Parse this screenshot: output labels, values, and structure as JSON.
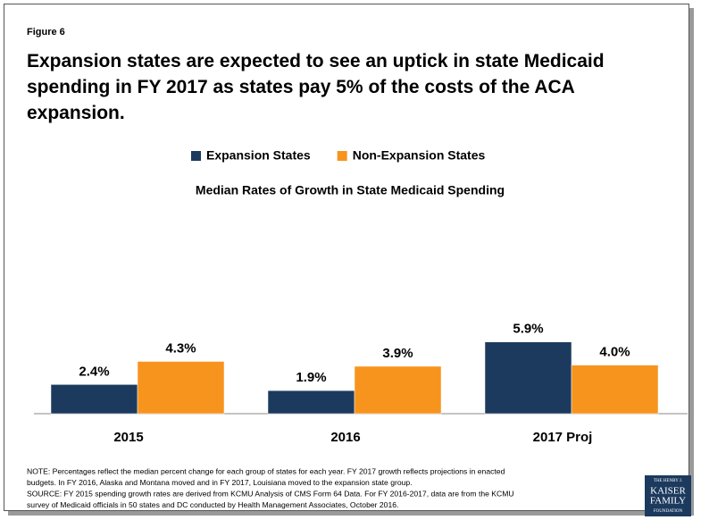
{
  "chart_data": {
    "type": "bar",
    "figure_label": "Figure 6",
    "title": "Expansion states are expected to see an uptick in state Medicaid spending in FY 2017 as states pay 5% of the costs of the ACA expansion.",
    "subtitle": "Median Rates of Growth in State Medicaid Spending",
    "categories": [
      "2015",
      "2016",
      "2017 Proj"
    ],
    "series": [
      {
        "name": "Expansion States",
        "color": "#1c3a5e",
        "values": [
          2.4,
          1.9,
          5.9
        ],
        "value_labels": [
          "2.4%",
          "1.9%",
          "5.9%"
        ]
      },
      {
        "name": "Non-Expansion States",
        "color": "#f7941d",
        "values": [
          4.3,
          3.9,
          4.0
        ],
        "value_labels": [
          "4.3%",
          "3.9%",
          "4.0%"
        ]
      }
    ],
    "legend": "top",
    "notes": [
      "NOTE: Percentages reflect the median percent change for each group of states for each year. FY 2017 growth reflects projections in enacted",
      "budgets. In FY 2016, Alaska and Montana moved and in FY 2017, Louisiana moved to the expansion state group.",
      "SOURCE: FY 2015 spending growth rates are derived from KCMU Analysis of CMS Form 64 Data. For FY 2016-2017, data are from the KCMU",
      "survey of Medicaid officials in 50 states and DC conducted by Health Management Associates, October 2016."
    ],
    "logo": [
      "THE HENRY J.",
      "KAISER",
      "FAMILY",
      "FOUNDATION"
    ]
  }
}
